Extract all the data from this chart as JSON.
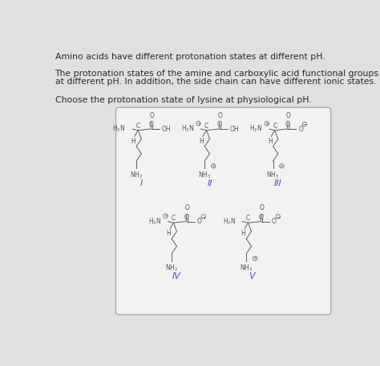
{
  "bg_color": "#e0e0e0",
  "box_bg": "#f2f2f2",
  "box_border": "#aaaaaa",
  "text_color": "#2a2a2a",
  "label_color": "#4455bb",
  "line1": "Amino acids have different protonation states at different pH.",
  "line2": "The protonation states of the amine and carboxylic acid functional groups can vary",
  "line3": "at different pH. In addition, the side chain can have different ionic states.",
  "line4": "Choose the protonation state of lysine at physiological pH.",
  "font_size_text": 7.8,
  "font_size_chem": 5.5,
  "font_size_label": 8.0
}
